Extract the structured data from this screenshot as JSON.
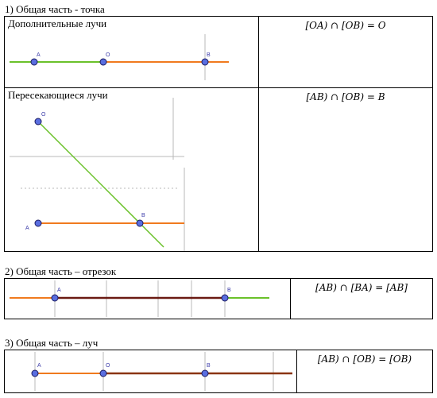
{
  "section1": {
    "heading": "1) Общая часть - точка",
    "rows": [
      {
        "caption": "Дополнительные лучи",
        "formula": "[OA) ∩ [OB) = O",
        "points": [
          "A",
          "O",
          "B"
        ]
      },
      {
        "caption": "Пересекающиеся лучи",
        "formula": "[AB) ∩ [OB) = B",
        "points": [
          "O",
          "A",
          "B"
        ]
      }
    ]
  },
  "section2": {
    "heading": "2) Общая часть – отрезок",
    "formula": "[AB) ∩ [BA) = [AB]",
    "points": [
      "A",
      "B"
    ]
  },
  "section3": {
    "heading": "3) Общая часть – луч",
    "formula": "[AB) ∩ [OB) = [OB)",
    "points": [
      "A",
      "O",
      "B"
    ]
  },
  "colors": {
    "green": "#6ac12a",
    "orange": "#f07a1e",
    "dark": "#6a1a12",
    "point_fill": "#5a6ee0"
  }
}
